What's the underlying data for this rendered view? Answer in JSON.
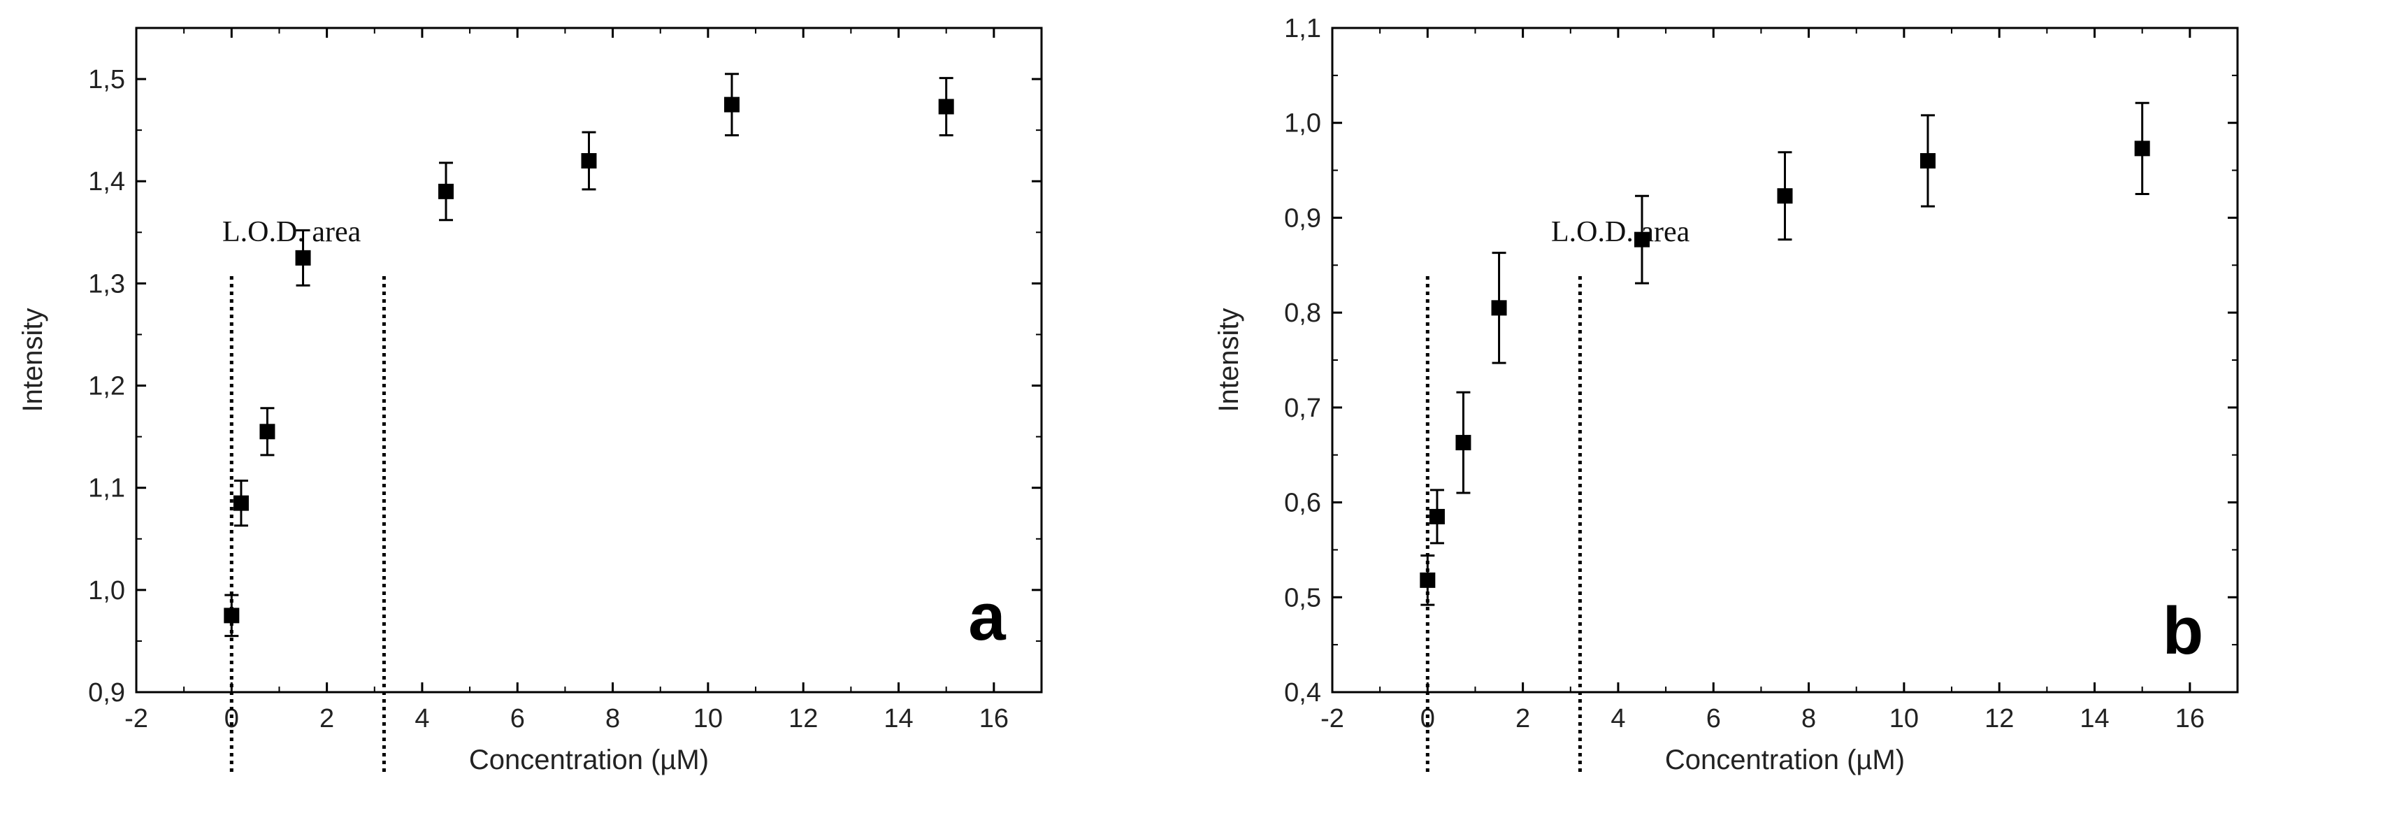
{
  "chart_data": [
    {
      "type": "scatter",
      "panel_label": "a",
      "xlabel": "Concentration (µM)",
      "ylabel": "Intensity",
      "xlim": [
        -2,
        17
      ],
      "ylim": [
        0.9,
        1.55
      ],
      "x_ticks": [
        "-2",
        "0",
        "2",
        "4",
        "6",
        "8",
        "10",
        "12",
        "14",
        "16"
      ],
      "y_ticks": [
        "0,9",
        "1,0",
        "1,1",
        "1,2",
        "1,3",
        "1,4",
        "1,5"
      ],
      "annotation": "L.O.D. area",
      "lod_lines_x": [
        0,
        3.2
      ],
      "marker": "square",
      "color": "#000000",
      "points": [
        {
          "x": 0.0,
          "y": 0.975,
          "err": 0.02
        },
        {
          "x": 0.2,
          "y": 1.085,
          "err": 0.022
        },
        {
          "x": 0.75,
          "y": 1.155,
          "err": 0.023
        },
        {
          "x": 1.5,
          "y": 1.325,
          "err": 0.027
        },
        {
          "x": 4.5,
          "y": 1.39,
          "err": 0.028
        },
        {
          "x": 7.5,
          "y": 1.42,
          "err": 0.028
        },
        {
          "x": 10.5,
          "y": 1.475,
          "err": 0.03
        },
        {
          "x": 15.0,
          "y": 1.473,
          "err": 0.028
        }
      ]
    },
    {
      "type": "scatter",
      "panel_label": "b",
      "xlabel": "Concentration (µM)",
      "ylabel": "Intensity",
      "xlim": [
        -2,
        17
      ],
      "ylim": [
        0.4,
        1.1
      ],
      "x_ticks": [
        "-2",
        "0",
        "2",
        "4",
        "6",
        "8",
        "10",
        "12",
        "14",
        "16"
      ],
      "y_ticks": [
        "0,4",
        "0,5",
        "0,6",
        "0,7",
        "0,8",
        "0,9",
        "1,0",
        "1,1"
      ],
      "annotation": "L.O.D. area",
      "lod_lines_x": [
        0,
        3.2
      ],
      "marker": "square",
      "color": "#000000",
      "points": [
        {
          "x": 0.0,
          "y": 0.518,
          "err": 0.026
        },
        {
          "x": 0.2,
          "y": 0.585,
          "err": 0.028
        },
        {
          "x": 0.75,
          "y": 0.663,
          "err": 0.053
        },
        {
          "x": 1.5,
          "y": 0.805,
          "err": 0.058
        },
        {
          "x": 4.5,
          "y": 0.877,
          "err": 0.046
        },
        {
          "x": 7.5,
          "y": 0.923,
          "err": 0.046
        },
        {
          "x": 10.5,
          "y": 0.96,
          "err": 0.048
        },
        {
          "x": 15.0,
          "y": 0.973,
          "err": 0.048
        }
      ]
    }
  ]
}
